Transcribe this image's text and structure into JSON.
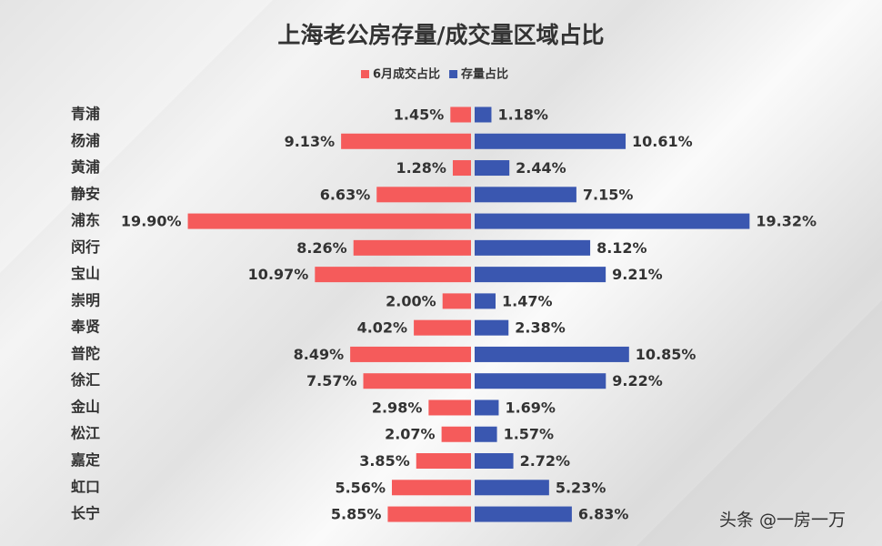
{
  "chart_data": {
    "type": "butterfly",
    "title": "上海老公房存量/成交量区域占比",
    "categories": [
      "青浦",
      "杨浦",
      "黄浦",
      "静安",
      "浦东",
      "闵行",
      "宝山",
      "崇明",
      "奉贤",
      "普陀",
      "徐汇",
      "金山",
      "松江",
      "嘉定",
      "虹口",
      "长宁"
    ],
    "series": [
      {
        "name": "6月成交占比",
        "color": "#f55b5b",
        "side": "left",
        "values": [
          1.45,
          9.13,
          1.28,
          6.63,
          19.9,
          8.26,
          10.97,
          2.0,
          4.02,
          8.49,
          7.57,
          2.98,
          2.07,
          3.85,
          5.56,
          5.85
        ],
        "value_labels": [
          "1.45%",
          "9.13%",
          "1.28%",
          "6.63%",
          "19.90%",
          "8.26%",
          "10.97%",
          "2.00%",
          "4.02%",
          "8.49%",
          "7.57%",
          "2.98%",
          "2.07%",
          "3.85%",
          "5.56%",
          "5.85%"
        ]
      },
      {
        "name": "存量占比",
        "color": "#3a57b0",
        "side": "right",
        "values": [
          1.18,
          10.61,
          2.44,
          7.15,
          19.32,
          8.12,
          9.21,
          1.47,
          2.38,
          10.85,
          9.22,
          1.69,
          1.57,
          2.72,
          5.23,
          6.83
        ],
        "value_labels": [
          "1.18%",
          "10.61%",
          "2.44%",
          "7.15%",
          "19.32%",
          "8.12%",
          "9.21%",
          "1.47%",
          "2.38%",
          "10.85%",
          "9.22%",
          "1.69%",
          "1.57%",
          "2.72%",
          "5.23%",
          "6.83%"
        ]
      }
    ],
    "credit": "头条 @一房一万"
  }
}
